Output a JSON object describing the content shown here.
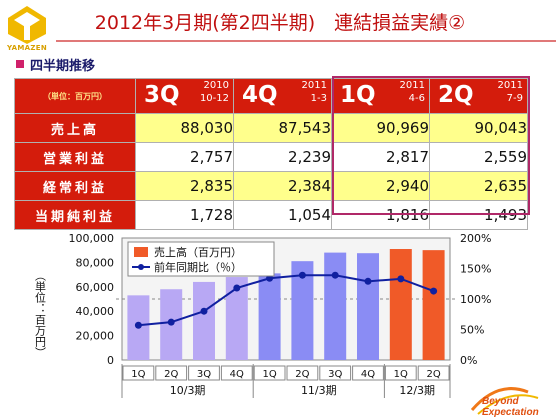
{
  "header": {
    "title": "2012年3月期(第2四半期)　連結損益実績②",
    "logo_text": "YAMAZEN"
  },
  "section": {
    "label": "四半期推移"
  },
  "table": {
    "unit_label": "（単位：百万円）",
    "columns": [
      {
        "quarter": "3Q",
        "year": "2010",
        "period": "10-12"
      },
      {
        "quarter": "4Q",
        "year": "2011",
        "period": "1-3"
      },
      {
        "quarter": "1Q",
        "year": "2011",
        "period": "4-6"
      },
      {
        "quarter": "2Q",
        "year": "2011",
        "period": "7-9"
      }
    ],
    "rows": [
      {
        "label": "売上高",
        "values": [
          "88,030",
          "87,543",
          "90,969",
          "90,043"
        ]
      },
      {
        "label": "営業利益",
        "values": [
          "2,757",
          "2,239",
          "2,817",
          "2,559"
        ]
      },
      {
        "label": "経常利益",
        "values": [
          "2,835",
          "2,384",
          "2,940",
          "2,635"
        ]
      },
      {
        "label": "当期純利益",
        "values": [
          "1,728",
          "1,054",
          "1,816",
          "1,493"
        ]
      }
    ]
  },
  "chart_data": {
    "type": "bar",
    "categories": [
      "1Q",
      "2Q",
      "3Q",
      "4Q",
      "1Q",
      "2Q",
      "3Q",
      "4Q",
      "1Q",
      "2Q"
    ],
    "groups": [
      {
        "label": "10/3期",
        "count": 4
      },
      {
        "label": "11/3期",
        "count": 4
      },
      {
        "label": "12/3期",
        "count": 2
      }
    ],
    "series": [
      {
        "name": "売上高（百万円）",
        "axis": "left",
        "type": "bar",
        "values": [
          53000,
          58000,
          64000,
          68000,
          71000,
          81000,
          88030,
          87543,
          90969,
          90043
        ]
      },
      {
        "name": "前年同期比（％）",
        "axis": "right",
        "type": "line",
        "values": [
          57,
          62,
          80,
          118,
          134,
          139,
          139,
          129,
          133,
          113
        ]
      }
    ],
    "bar_colors": [
      "#b8a8f4",
      "#b8a8f4",
      "#b8a8f4",
      "#b8a8f4",
      "#8a8cf4",
      "#8a8cf4",
      "#8a8cf4",
      "#8a8cf4",
      "#f05a28",
      "#f05a28"
    ],
    "line_color": "#1020a0",
    "reference_line": 100,
    "ylim_left": [
      0,
      100000
    ],
    "ylim_right": [
      0,
      200
    ],
    "yticks_left": [
      "100,000",
      "80,000",
      "60,000",
      "40,000",
      "20,000",
      "0"
    ],
    "yticks_right": [
      "200%",
      "150%",
      "100%",
      "50%",
      "0%"
    ],
    "ylabel": "（単位：百万円）"
  },
  "footer": {
    "brand_line1": "Beyond",
    "brand_line2": "Expectation"
  }
}
